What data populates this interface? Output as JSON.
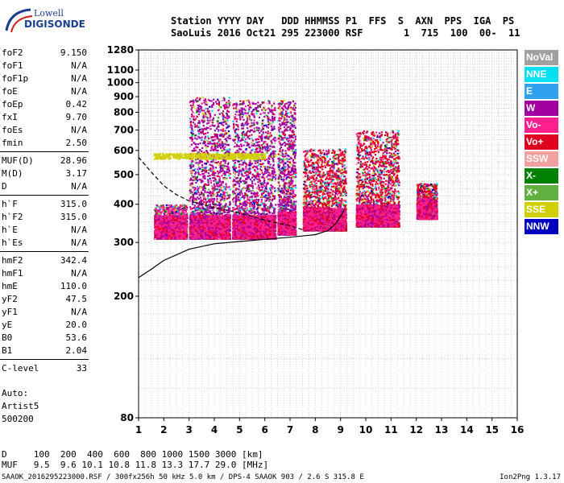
{
  "logo": {
    "line1": "Lowell",
    "line2": "DIGISONDE"
  },
  "header": {
    "line1": "Station YYYY DAY   DDD HHMMSS P1  FFS  S  AXN  PPS  IGA  PS",
    "line2": "SaoLuis 2016 Oct21 295 223000 RSF       1  715  100  00-  11"
  },
  "params": [
    {
      "name": "foF2",
      "value": "9.150"
    },
    {
      "name": "foF1",
      "value": "N/A"
    },
    {
      "name": "foF1p",
      "value": "N/A"
    },
    {
      "name": "foE",
      "value": "N/A"
    },
    {
      "name": "foEp",
      "value": "0.42"
    },
    {
      "name": "fxI",
      "value": "9.70"
    },
    {
      "name": "foEs",
      "value": "N/A"
    },
    {
      "name": "fmin",
      "value": "2.50"
    },
    {
      "name": "MUF(D)",
      "value": "28.96"
    },
    {
      "name": "M(D)",
      "value": "3.17"
    },
    {
      "name": "D",
      "value": "N/A"
    },
    {
      "name": "h`F",
      "value": "315.0"
    },
    {
      "name": "h`F2",
      "value": "315.0"
    },
    {
      "name": "h`E",
      "value": "N/A"
    },
    {
      "name": "h`Es",
      "value": "N/A"
    },
    {
      "name": "hmF2",
      "value": "342.4"
    },
    {
      "name": "hmF1",
      "value": "N/A"
    },
    {
      "name": "hmE",
      "value": "110.0"
    },
    {
      "name": "yF2",
      "value": "47.5"
    },
    {
      "name": "yF1",
      "value": "N/A"
    },
    {
      "name": "yE",
      "value": "20.0"
    },
    {
      "name": "B0",
      "value": "53.6"
    },
    {
      "name": "B1",
      "value": "2.04"
    },
    {
      "name": "C-level",
      "value": "33"
    }
  ],
  "auto": {
    "l1": "Auto:",
    "l2": "Artist5",
    "l3": "500200"
  },
  "bottom": {
    "d_row": "D     100  200  400  600  800 1000 1500 3000 [km]",
    "muf_row": "MUF   9.5  9.6 10.1 10.8 11.8 13.3 17.7 29.0 [MHz]"
  },
  "footer": {
    "left": "SAAOK_2016295223000.RSF / 300fx256h 50 kHz 5.0 km / DPS-4 SAAOK 903 / 2.6 S 315.8 E",
    "right": "Ion2Png 1.3.17"
  },
  "legend": [
    {
      "label": "NoVal",
      "color": "#a0a0a0"
    },
    {
      "label": "NNE",
      "color": "#00e0f0"
    },
    {
      "label": "E",
      "color": "#30a0f0"
    },
    {
      "label": "W",
      "color": "#a000a0"
    },
    {
      "label": "Vo-",
      "color": "#ff2090"
    },
    {
      "label": "Vo+",
      "color": "#e00020"
    },
    {
      "label": "SSW",
      "color": "#f0a0a0"
    },
    {
      "label": "X-",
      "color": "#008000"
    },
    {
      "label": "X+",
      "color": "#60b040"
    },
    {
      "label": "SSE",
      "color": "#d0d000"
    },
    {
      "label": "NNW",
      "color": "#0000c0"
    }
  ],
  "chart_data": {
    "type": "scatter",
    "xlabel": "",
    "ylabel": "",
    "xlim": [
      1,
      16
    ],
    "x_ticks": [
      1,
      2,
      3,
      4,
      5,
      6,
      7,
      8,
      9,
      10,
      11,
      12,
      13,
      14,
      15,
      16
    ],
    "y_scale": "log",
    "ylim": [
      80,
      1280
    ],
    "y_ticks": [
      80,
      200,
      300,
      400,
      500,
      600,
      700,
      800,
      900,
      1000,
      1100,
      1280
    ],
    "grid": true,
    "traces": [
      {
        "name": "",
        "style": "dashed",
        "x": [
          1.0,
          1.5,
          2.0,
          2.5,
          3.0,
          3.5,
          4.0,
          5.0,
          6.0,
          7.0,
          7.5
        ],
        "y": [
          570,
          510,
          460,
          430,
          410,
          400,
          390,
          375,
          355,
          340,
          330
        ]
      },
      {
        "name": "",
        "style": "solid",
        "x": [
          1.0,
          1.5,
          2.0,
          3.0,
          4.0,
          5.0,
          6.0,
          7.0,
          8.0,
          8.5,
          8.8,
          9.0,
          9.15
        ],
        "y": [
          230,
          245,
          262,
          285,
          297,
          302,
          307,
          312,
          318,
          328,
          345,
          365,
          385
        ]
      }
    ],
    "echo_regions": [
      {
        "x": [
          1.6,
          2.9
        ],
        "y": [
          310,
          400
        ],
        "dominant": "Vo-"
      },
      {
        "x": [
          3.0,
          4.6
        ],
        "y": [
          310,
          900
        ],
        "dominant": "W"
      },
      {
        "x": [
          4.7,
          6.4
        ],
        "y": [
          310,
          880
        ],
        "dominant": "W"
      },
      {
        "x": [
          6.5,
          7.2
        ],
        "y": [
          320,
          880
        ],
        "dominant": "W"
      },
      {
        "x": [
          7.5,
          9.2
        ],
        "y": [
          330,
          610
        ],
        "dominant": "Vo+"
      },
      {
        "x": [
          9.6,
          11.3
        ],
        "y": [
          340,
          700
        ],
        "dominant": "Vo+"
      },
      {
        "x": [
          12.0,
          12.8
        ],
        "y": [
          360,
          470
        ],
        "dominant": "Vo+"
      }
    ],
    "sse_band": {
      "x": [
        1.6,
        6.0
      ],
      "y": [
        565,
        590
      ],
      "color": "SSE"
    }
  }
}
